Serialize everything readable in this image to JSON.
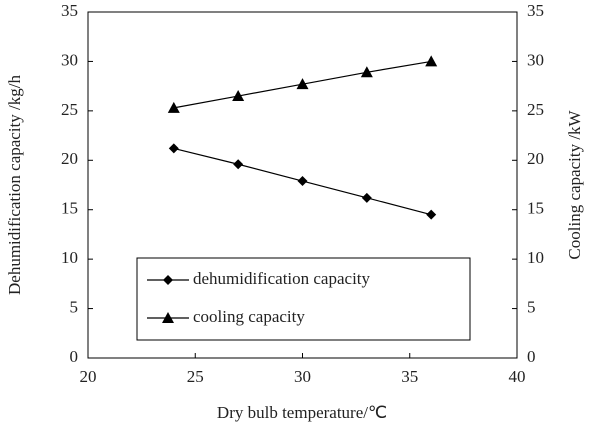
{
  "chart_data": {
    "type": "line",
    "x_label": "Dry bulb temperature/℃",
    "y_label": "Dehumidification capacity /kg/h",
    "y2_label": "Cooling capacity /kW",
    "x": [
      24,
      27,
      30,
      33,
      36
    ],
    "series": [
      {
        "name": "dehumidification capacity",
        "color": "#000000",
        "marker": "diamond",
        "values": [
          21.2,
          19.6,
          17.9,
          16.2,
          14.5
        ]
      },
      {
        "name": "cooling capacity",
        "color": "#000000",
        "marker": "triangle",
        "axis": "y2",
        "values": [
          25.3,
          26.5,
          27.7,
          28.9,
          30.0
        ]
      }
    ],
    "xlim": [
      20,
      40
    ],
    "xticks": [
      20,
      25,
      30,
      35,
      40
    ],
    "ylim": [
      0,
      35
    ],
    "yticks": [
      0,
      5,
      10,
      15,
      20,
      25,
      30,
      35
    ],
    "y2lim": [
      0,
      35
    ],
    "y2ticks": [
      0,
      5,
      10,
      15,
      20,
      25,
      30,
      35
    ],
    "legend": "lower center",
    "grid": false
  }
}
